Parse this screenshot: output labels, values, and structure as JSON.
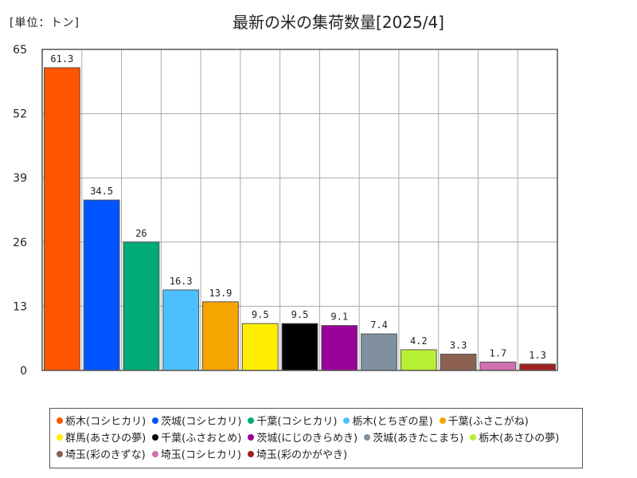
{
  "unit_label": "[単位：トン]",
  "chart_data": {
    "type": "bar",
    "title": "最新の米の集荷数量[2025/4]",
    "ylim": [
      0,
      65
    ],
    "yticks": [
      0,
      13,
      26,
      39,
      52,
      65
    ],
    "grid": true,
    "legend_position": "bottom",
    "categories": [
      "栃木(コシヒカリ)",
      "茨城(コシヒカリ)",
      "千葉(コシヒカリ)",
      "栃木(とちぎの星)",
      "千葉(ふさこがね)",
      "群馬(あさひの夢)",
      "千葉(ふさおとめ)",
      "茨城(にじのきらめき)",
      "茨城(あきたこまち)",
      "栃木(あさひの夢)",
      "埼玉(彩のきずな)",
      "埼玉(コシヒカリ)",
      "埼玉(彩のかがやき)"
    ],
    "values": [
      61.3,
      34.5,
      26,
      16.3,
      13.9,
      9.5,
      9.5,
      9.1,
      7.4,
      4.2,
      3.3,
      1.7,
      1.3
    ],
    "value_labels": [
      "61.3",
      "34.5",
      "26",
      "16.3",
      "13.9",
      "9.5",
      "9.5",
      "9.1",
      "7.4",
      "4.2",
      "3.3",
      "1.7",
      "1.3"
    ],
    "colors": [
      "#ff5500",
      "#0055ff",
      "#00aa77",
      "#4dbfff",
      "#f5a500",
      "#ffee00",
      "#000000",
      "#990099",
      "#8090a0",
      "#b8f033",
      "#8b6050",
      "#d070b0",
      "#a02020"
    ]
  }
}
